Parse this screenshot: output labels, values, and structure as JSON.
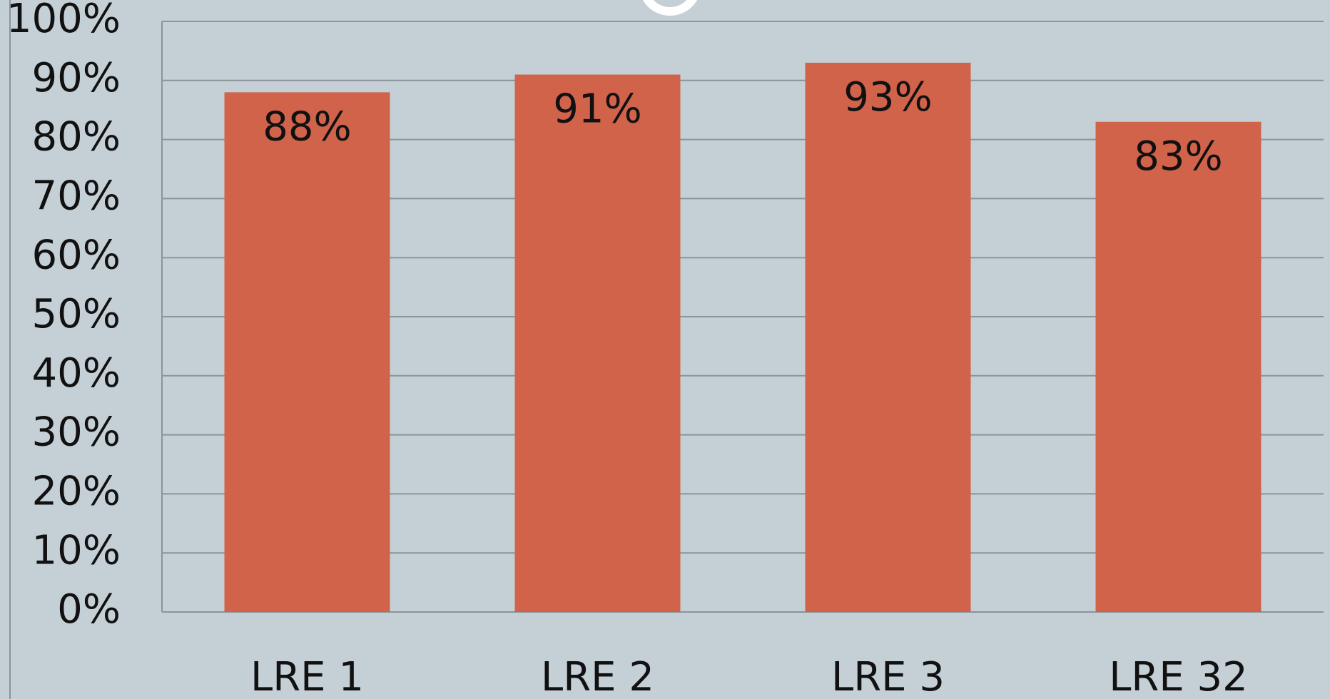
{
  "chart_data": {
    "type": "bar",
    "categories": [
      "LRE 1",
      "LRE 2",
      "LRE 3",
      "LRE 32"
    ],
    "values": [
      88,
      91,
      93,
      83
    ],
    "value_labels": [
      "88%",
      "91%",
      "93%",
      "83%"
    ],
    "color": "#d0634a",
    "ylim": [
      0,
      100
    ],
    "yticks": [
      {
        "value": 0,
        "label": "0%"
      },
      {
        "value": 10,
        "label": "10%"
      },
      {
        "value": 20,
        "label": "20%"
      },
      {
        "value": 30,
        "label": "30%"
      },
      {
        "value": 40,
        "label": "40%"
      },
      {
        "value": 50,
        "label": "50%"
      },
      {
        "value": 60,
        "label": "60%"
      },
      {
        "value": 70,
        "label": "70%"
      },
      {
        "value": 80,
        "label": "80%"
      },
      {
        "value": 90,
        "label": "90%"
      },
      {
        "value": 100,
        "label": "100%"
      }
    ],
    "grid": true
  }
}
